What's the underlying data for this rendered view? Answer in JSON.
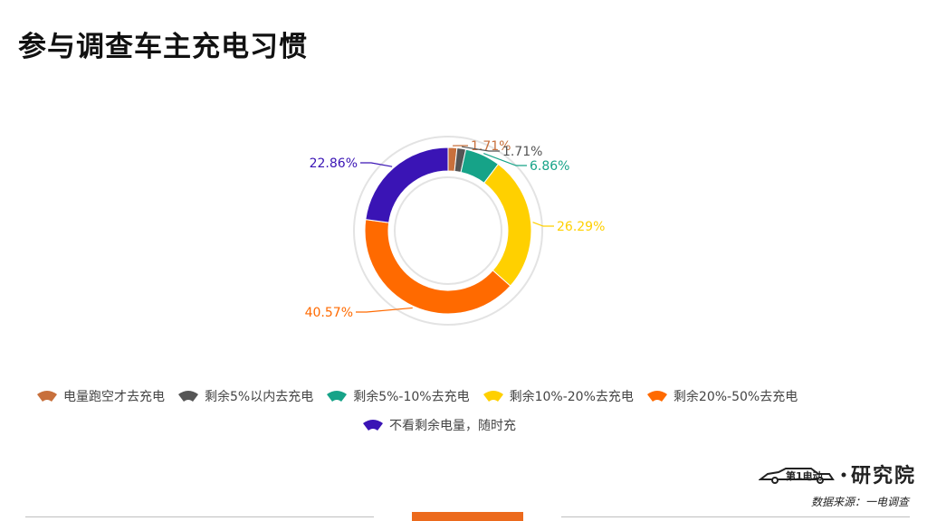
{
  "page": {
    "title": "参与调查车主充电习惯",
    "source": "数据来源：一电调查",
    "brand_text": "研究院",
    "brand_logo_text": "第1电动"
  },
  "chart_data": {
    "type": "pie",
    "variant": "donut",
    "title": "",
    "slices": [
      {
        "label": "电量跑空才去充电",
        "value": 1.71,
        "display": "1.71%",
        "color": "#c8703c"
      },
      {
        "label": "剩余5%以内去充电",
        "value": 1.71,
        "display": "1.71%",
        "color": "#555555"
      },
      {
        "label": "剩余5%-10%去充电",
        "value": 6.86,
        "display": "6.86%",
        "color": "#16a388"
      },
      {
        "label": "剩余10%-20%去充电",
        "value": 26.29,
        "display": "26.29%",
        "color": "#ffd000"
      },
      {
        "label": "剩余20%-50%去充电",
        "value": 40.57,
        "display": "40.57%",
        "color": "#ff6a00"
      },
      {
        "label": "不看剩余电量，随时充",
        "value": 22.86,
        "display": "22.86%",
        "color": "#3a14b5"
      }
    ],
    "legend_position": "bottom"
  }
}
